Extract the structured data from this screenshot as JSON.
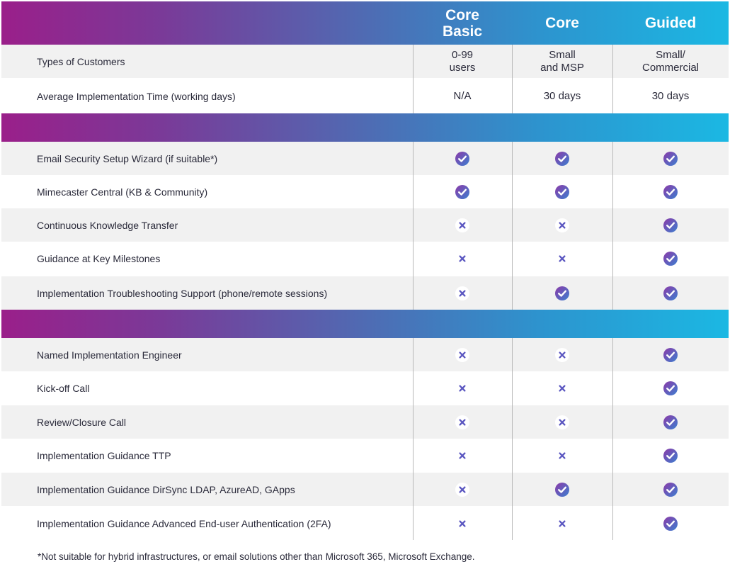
{
  "header": {
    "columns": [
      "Core\nBasic",
      "Core",
      "Guided"
    ]
  },
  "info_rows": [
    {
      "label": "Types of Customers",
      "values": [
        "0-99\nusers",
        "Small\nand MSP",
        "Small/\nCommercial"
      ]
    },
    {
      "label": "Average Implementation Time (working days)",
      "values": [
        "N/A",
        "30 days",
        "30 days"
      ]
    }
  ],
  "section1_rows": [
    {
      "label": "Email Security Setup Wizard (if suitable*)",
      "values": [
        "check",
        "check",
        "check"
      ]
    },
    {
      "label": "Mimecaster Central (KB & Community)",
      "values": [
        "check",
        "check",
        "check"
      ]
    },
    {
      "label": "Continuous Knowledge Transfer",
      "values": [
        "cross",
        "cross",
        "check"
      ]
    },
    {
      "label": "Guidance at Key Milestones",
      "values": [
        "cross",
        "cross",
        "check"
      ]
    },
    {
      "label": "Implementation Troubleshooting Support (phone/remote sessions)",
      "values": [
        "cross",
        "check",
        "check"
      ]
    }
  ],
  "section2_rows": [
    {
      "label": "Named Implementation Engineer",
      "values": [
        "cross",
        "cross",
        "check"
      ]
    },
    {
      "label": "Kick-off Call",
      "values": [
        "cross",
        "cross",
        "check"
      ]
    },
    {
      "label": "Review/Closure Call",
      "values": [
        "cross",
        "cross",
        "check"
      ]
    },
    {
      "label": "Implementation Guidance TTP",
      "values": [
        "cross",
        "cross",
        "check"
      ]
    },
    {
      "label": "Implementation Guidance DirSync LDAP, AzureAD, GApps",
      "values": [
        "cross",
        "check",
        "check"
      ]
    },
    {
      "label": "Implementation Guidance Advanced End-user Authentication (2FA)",
      "values": [
        "cross",
        "cross",
        "check"
      ]
    }
  ],
  "footnote": "*Not suitable for hybrid infrastructures, or email solutions other than Microsoft 365, Microsoft Exchange.",
  "colors": {
    "gradient_start": "#9a1f8a",
    "gradient_end": "#1bb8e3",
    "check_start": "#8b3aa8",
    "check_end": "#3d7fd0",
    "cross": "#5a56c0",
    "row_shade": "#f1f1f1"
  }
}
